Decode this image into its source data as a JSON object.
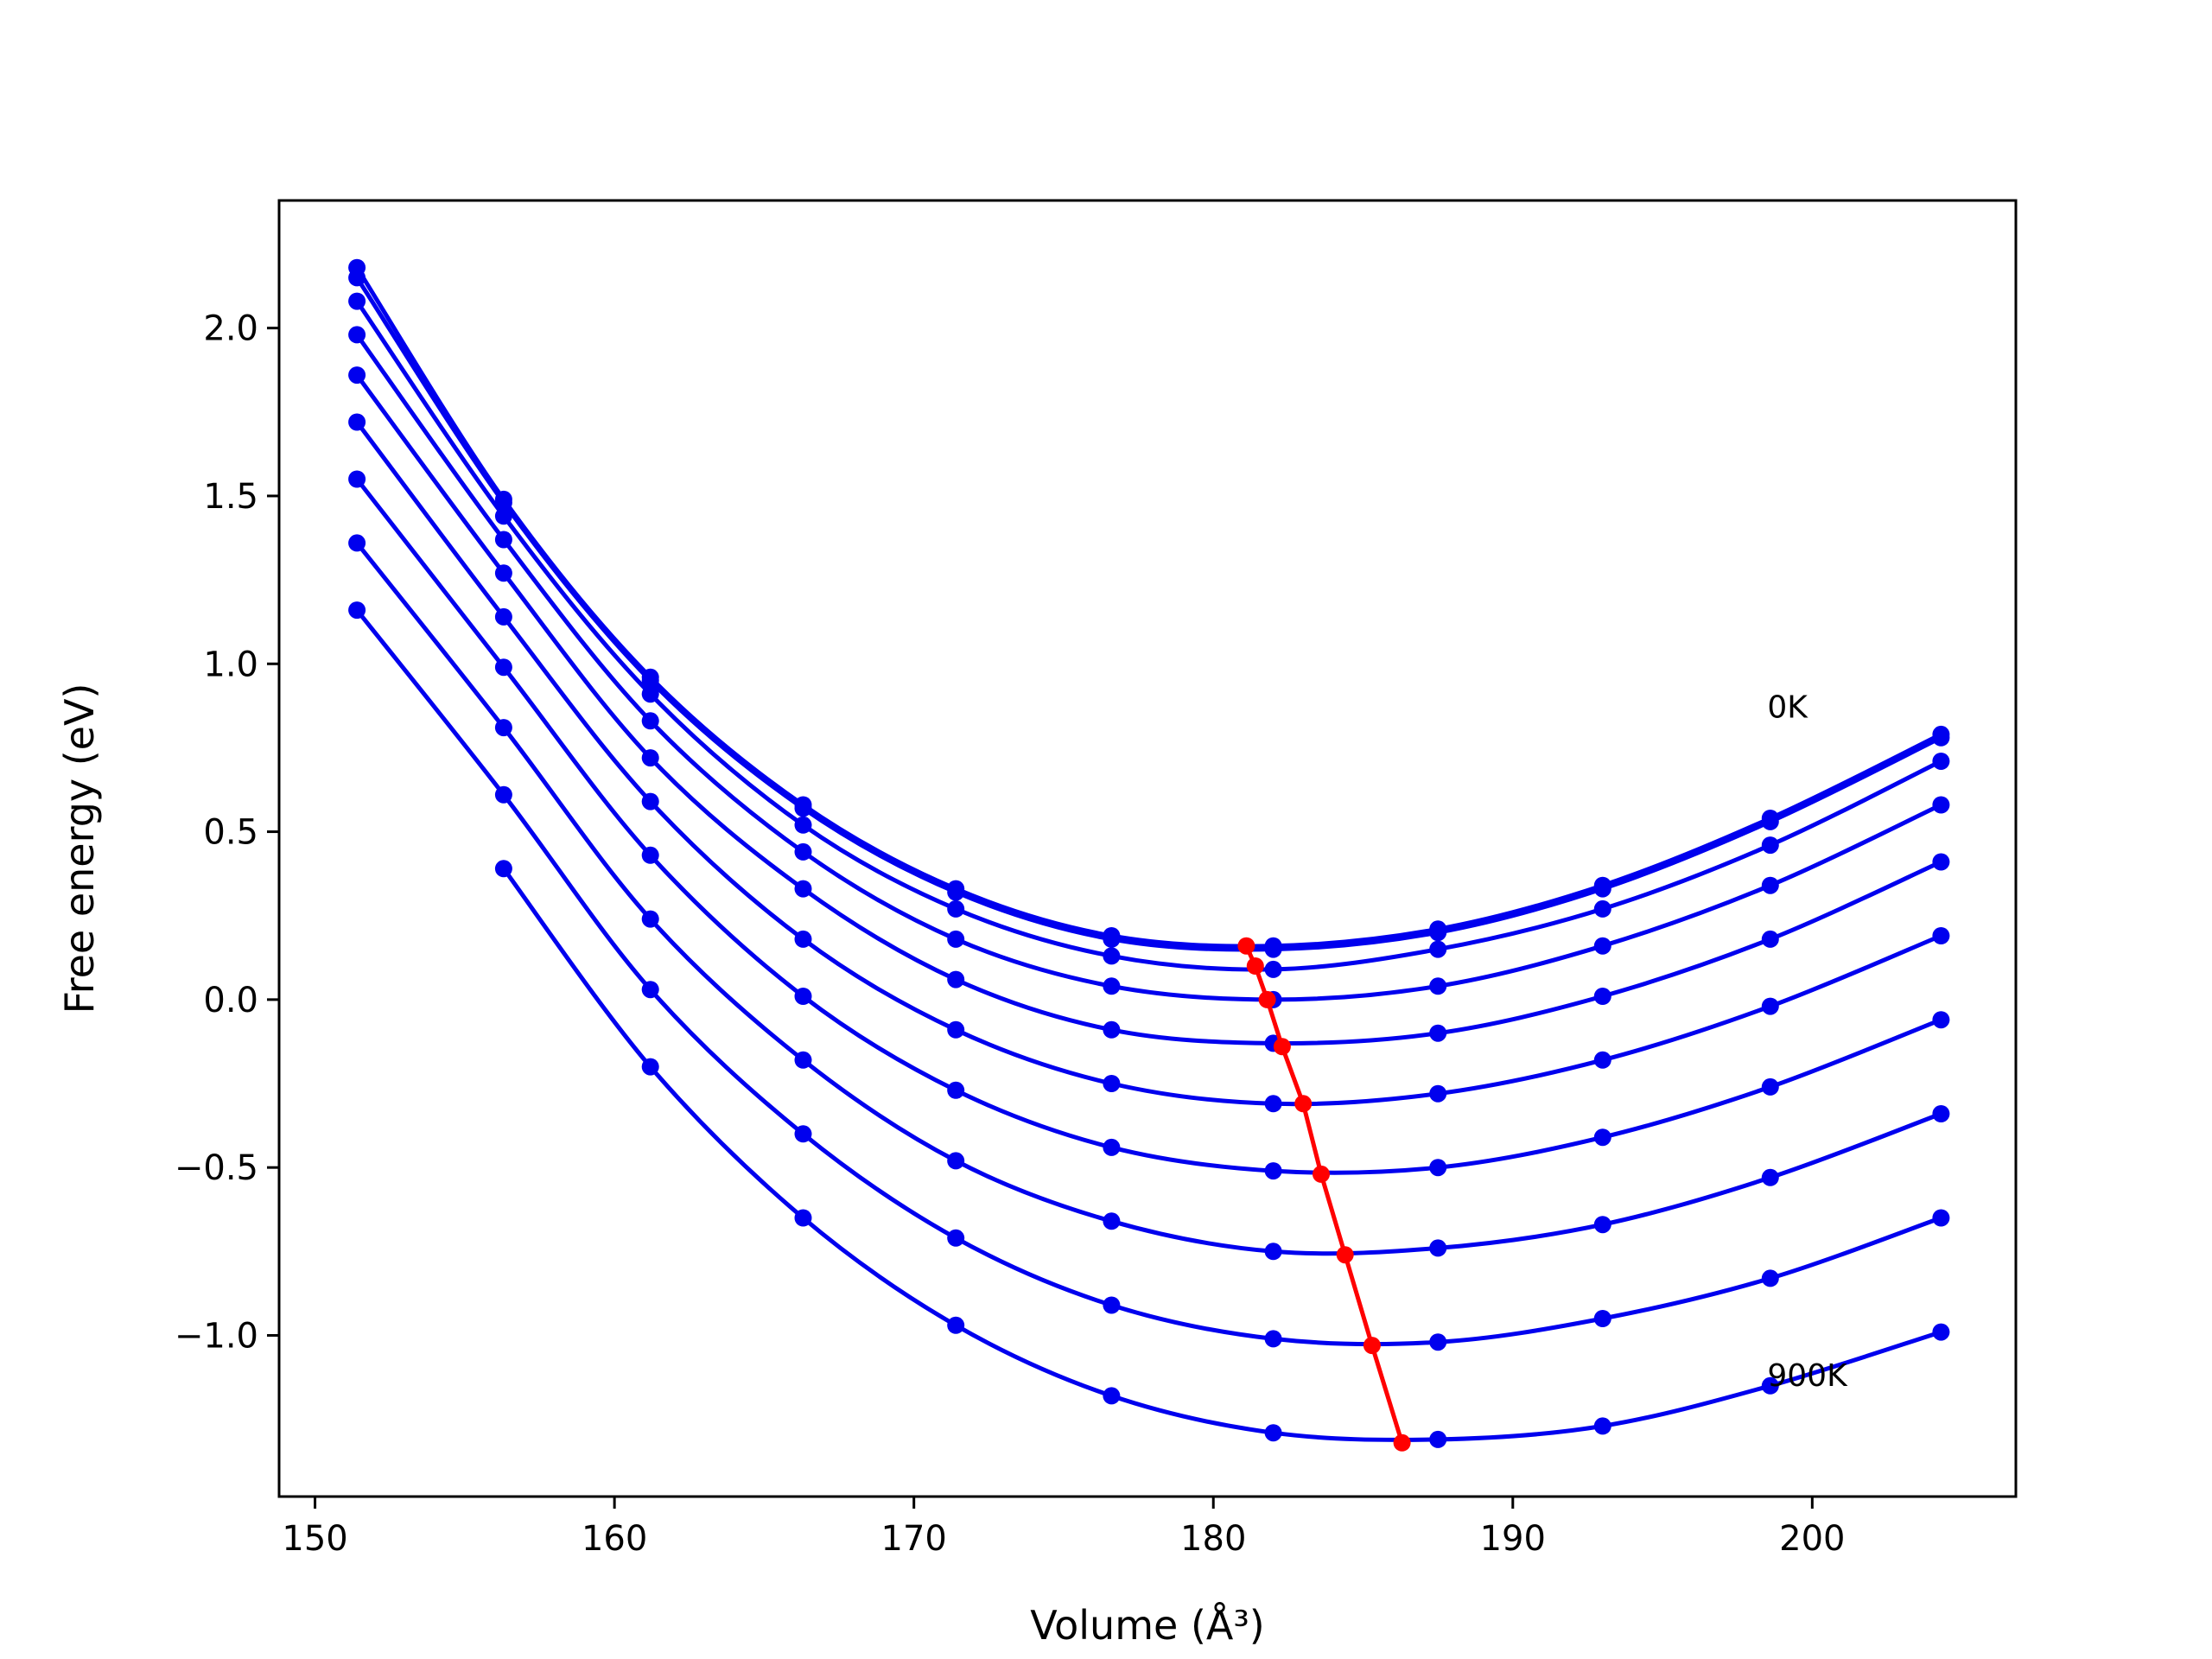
{
  "chart_data": {
    "type": "line",
    "title": "",
    "xlabel": "Volume (Å³)",
    "ylabel": "Free energy (eV)",
    "xlim": [
      148.8,
      206.8
    ],
    "ylim": [
      -1.48,
      2.38
    ],
    "xticks": [
      150,
      160,
      170,
      180,
      190,
      200
    ],
    "yticks": [
      2.0,
      1.5,
      1.0,
      0.5,
      0.0,
      -0.5,
      -1.0
    ],
    "ytick_labels": [
      "2.0",
      "1.5",
      "1.0",
      "0.5",
      "0.0",
      "−0.5",
      "−1.0"
    ],
    "grid": false,
    "legend": "none",
    "colors": {
      "curves": "#0000ee",
      "minima": "#ff0000"
    },
    "annotations": [
      {
        "text": "0K",
        "x": 198.5,
        "y": 0.84
      },
      {
        "text": "900K",
        "x": 198.5,
        "y": -1.15
      }
    ],
    "x": [
      151.4,
      156.3,
      161.2,
      166.3,
      171.4,
      176.6,
      182.0,
      187.5,
      193.0,
      198.6,
      204.3
    ],
    "series": [
      {
        "values": [
          2.18,
          1.49,
          0.96,
          0.58,
          0.33,
          0.19,
          0.16,
          0.21,
          0.34,
          0.54,
          0.79
        ]
      },
      {
        "values": [
          2.15,
          1.48,
          0.95,
          0.57,
          0.32,
          0.18,
          0.15,
          0.2,
          0.33,
          0.53,
          0.78
        ]
      },
      {
        "values": [
          2.08,
          1.44,
          0.91,
          0.52,
          0.27,
          0.13,
          0.09,
          0.15,
          0.27,
          0.46,
          0.71
        ]
      },
      {
        "values": [
          1.98,
          1.37,
          0.83,
          0.44,
          0.18,
          0.04,
          0.0,
          0.04,
          0.16,
          0.34,
          0.58
        ]
      },
      {
        "values": [
          1.86,
          1.27,
          0.72,
          0.33,
          0.06,
          -0.09,
          -0.13,
          -0.1,
          0.01,
          0.18,
          0.41
        ]
      },
      {
        "values": [
          1.72,
          1.14,
          0.59,
          0.18,
          -0.09,
          -0.25,
          -0.31,
          -0.28,
          -0.18,
          -0.02,
          0.19
        ]
      },
      {
        "values": [
          1.55,
          0.99,
          0.43,
          0.01,
          -0.27,
          -0.44,
          -0.51,
          -0.5,
          -0.41,
          -0.26,
          -0.06
        ]
      },
      {
        "values": [
          1.36,
          0.81,
          0.24,
          -0.18,
          -0.48,
          -0.66,
          -0.75,
          -0.74,
          -0.67,
          -0.53,
          -0.34
        ]
      },
      {
        "values": [
          1.16,
          0.61,
          0.03,
          -0.4,
          -0.71,
          -0.91,
          -1.01,
          -1.02,
          -0.95,
          -0.83,
          -0.65
        ]
      },
      {
        "values": [
          null,
          0.39,
          -0.2,
          -0.65,
          -0.97,
          -1.18,
          -1.29,
          -1.31,
          -1.27,
          -1.15,
          -0.99
        ]
      }
    ],
    "minima": {
      "x": [
        181.1,
        181.4,
        181.8,
        182.3,
        183.0,
        183.6,
        184.4,
        185.3,
        186.3
      ],
      "y": [
        0.16,
        0.1,
        0.0,
        -0.14,
        -0.31,
        -0.52,
        -0.76,
        -1.03,
        -1.32
      ]
    }
  }
}
